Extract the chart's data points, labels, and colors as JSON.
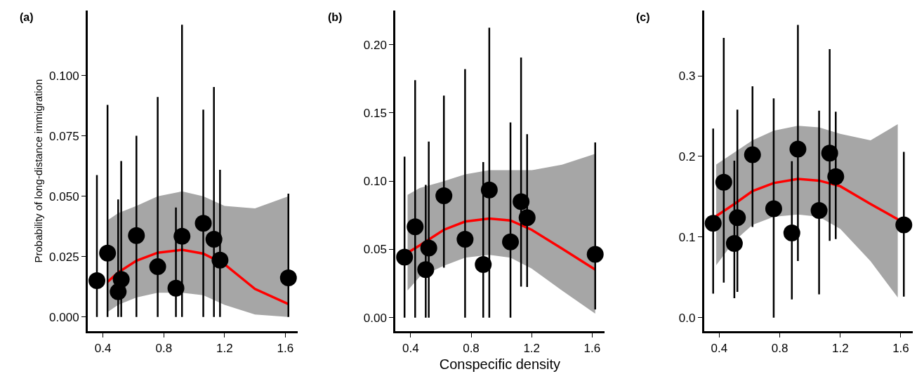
{
  "chart_data": [
    {
      "type": "scatter",
      "title": "(a)",
      "ylabel": "Probability of long-distance immigration",
      "x": [
        0.36,
        0.43,
        0.5,
        0.52,
        0.62,
        0.76,
        0.88,
        0.92,
        1.06,
        1.13,
        1.17,
        1.62
      ],
      "xlim": [
        0.3,
        1.68
      ],
      "xticks": [
        0.4,
        0.8,
        1.2,
        1.6
      ],
      "ylim": [
        -0.006,
        0.127
      ],
      "yticks": [
        {
          "value": 0,
          "label": "0.000"
        },
        {
          "value": 0.025,
          "label": "0.025"
        },
        {
          "value": 0.05,
          "label": "0.050"
        },
        {
          "value": 0.075,
          "label": "0.075"
        },
        {
          "value": 0.1,
          "label": "0.100"
        }
      ],
      "series": [
        {
          "marker": "circle",
          "color": "#000000",
          "values": [
            0.015,
            0.0264,
            0.0104,
            0.0155,
            0.0337,
            0.0208,
            0.0119,
            0.0334,
            0.0388,
            0.0322,
            0.0235,
            0.0162
          ],
          "errors": [
            [
              0,
              0.0588
            ],
            [
              0,
              0.0879
            ],
            [
              0,
              0.0487
            ],
            [
              0,
              0.0646
            ],
            [
              0,
              0.0751
            ],
            [
              0,
              0.0911
            ],
            [
              0,
              0.0453
            ],
            [
              0,
              0.1211
            ],
            [
              0,
              0.0859
            ],
            [
              0,
              0.0953
            ],
            [
              0,
              0.061
            ],
            [
              0,
              0.0511
            ]
          ]
        },
        {
          "type": "line",
          "marker": "none",
          "color": "#ff0000",
          "x": [
            0.43,
            0.5,
            0.62,
            0.76,
            0.92,
            1.06,
            1.2,
            1.4,
            1.62
          ],
          "values": [
            0.0145,
            0.0184,
            0.0233,
            0.0266,
            0.0278,
            0.0262,
            0.0218,
            0.0116,
            0.0053
          ],
          "lower": [
            0.002,
            0.005,
            0.008,
            0.01,
            0.01,
            0.009,
            0.005,
            0.001,
            0.0
          ],
          "upper": [
            0.04,
            0.043,
            0.046,
            0.05,
            0.052,
            0.05,
            0.046,
            0.045,
            0.05
          ]
        }
      ]
    },
    {
      "type": "scatter",
      "title": "(b)",
      "xlabel": "Conspecific density",
      "x": [
        0.36,
        0.43,
        0.5,
        0.52,
        0.62,
        0.76,
        0.88,
        0.92,
        1.06,
        1.13,
        1.17,
        1.62
      ],
      "xlim": [
        0.3,
        1.68
      ],
      "xticks": [
        0.4,
        0.8,
        1.2,
        1.6
      ],
      "ylim": [
        -0.01,
        0.225
      ],
      "yticks": [
        {
          "value": 0,
          "label": "0.00"
        },
        {
          "value": 0.05,
          "label": "0.05"
        },
        {
          "value": 0.1,
          "label": "0.10"
        },
        {
          "value": 0.15,
          "label": "0.15"
        },
        {
          "value": 0.2,
          "label": "0.20"
        }
      ],
      "series": [
        {
          "marker": "circle",
          "color": "#000000",
          "values": [
            0.0443,
            0.0666,
            0.0352,
            0.051,
            0.0893,
            0.0575,
            0.039,
            0.0936,
            0.0555,
            0.085,
            0.0733,
            0.0464
          ],
          "errors": [
            [
              0,
              0.118
            ],
            [
              0,
              0.174
            ],
            [
              0,
              0.0973
            ],
            [
              0,
              0.129
            ],
            [
              0.0367,
              0.1626
            ],
            [
              0,
              0.182
            ],
            [
              0,
              0.114
            ],
            [
              0,
              0.2124
            ],
            [
              0,
              0.143
            ],
            [
              0.0227,
              0.1906
            ],
            [
              0.0225,
              0.1344
            ],
            [
              0.006,
              0.1284
            ]
          ]
        },
        {
          "type": "line",
          "marker": "none",
          "color": "#ff0000",
          "x": [
            0.38,
            0.46,
            0.62,
            0.76,
            0.92,
            1.06,
            1.2,
            1.4,
            1.62
          ],
          "values": [
            0.0476,
            0.053,
            0.0644,
            0.0704,
            0.0726,
            0.0712,
            0.0644,
            0.0506,
            0.0352
          ],
          "lower": [
            0.02,
            0.03,
            0.038,
            0.044,
            0.046,
            0.044,
            0.036,
            0.02,
            0.003
          ],
          "upper": [
            0.09,
            0.095,
            0.1,
            0.105,
            0.108,
            0.108,
            0.108,
            0.112,
            0.12
          ]
        }
      ]
    },
    {
      "type": "scatter",
      "title": "(c)",
      "x": [
        0.36,
        0.43,
        0.5,
        0.52,
        0.62,
        0.76,
        0.88,
        0.92,
        1.06,
        1.13,
        1.17,
        1.62
      ],
      "xlim": [
        0.3,
        1.68
      ],
      "xticks": [
        0.4,
        0.8,
        1.2,
        1.6
      ],
      "ylim": [
        -0.017,
        0.381
      ],
      "yticks": [
        {
          "value": 0,
          "label": "0.0"
        },
        {
          "value": 0.1,
          "label": "0.1"
        },
        {
          "value": 0.2,
          "label": "0.2"
        },
        {
          "value": 0.3,
          "label": "0.3"
        }
      ],
      "series": [
        {
          "marker": "circle",
          "color": "#000000",
          "values": [
            0.117,
            0.168,
            0.092,
            0.124,
            0.202,
            0.135,
            0.105,
            0.209,
            0.133,
            0.204,
            0.175,
            0.115
          ],
          "errors": [
            [
              0.0297,
              0.2346
            ],
            [
              0.0436,
              0.347
            ],
            [
              0.0241,
              0.1948
            ],
            [
              0.032,
              0.258
            ],
            [
              0.1125,
              0.287
            ],
            [
              0,
              0.272
            ],
            [
              0.0227,
              0.194
            ],
            [
              0.0703,
              0.363
            ],
            [
              0.029,
              0.2567
            ],
            [
              0.0953,
              0.333
            ],
            [
              0.0974,
              0.2555
            ],
            [
              0.026,
              0.2055
            ]
          ]
        },
        {
          "type": "line",
          "marker": "none",
          "color": "#ff0000",
          "x": [
            0.38,
            0.5,
            0.62,
            0.76,
            0.92,
            1.06,
            1.2,
            1.4,
            1.58
          ],
          "values": [
            0.126,
            0.141,
            0.157,
            0.167,
            0.172,
            0.17,
            0.163,
            0.141,
            0.122
          ],
          "lower": [
            0.065,
            0.095,
            0.115,
            0.125,
            0.128,
            0.125,
            0.11,
            0.07,
            0.025
          ],
          "upper": [
            0.19,
            0.205,
            0.22,
            0.232,
            0.238,
            0.236,
            0.228,
            0.22,
            0.24
          ]
        }
      ]
    }
  ]
}
